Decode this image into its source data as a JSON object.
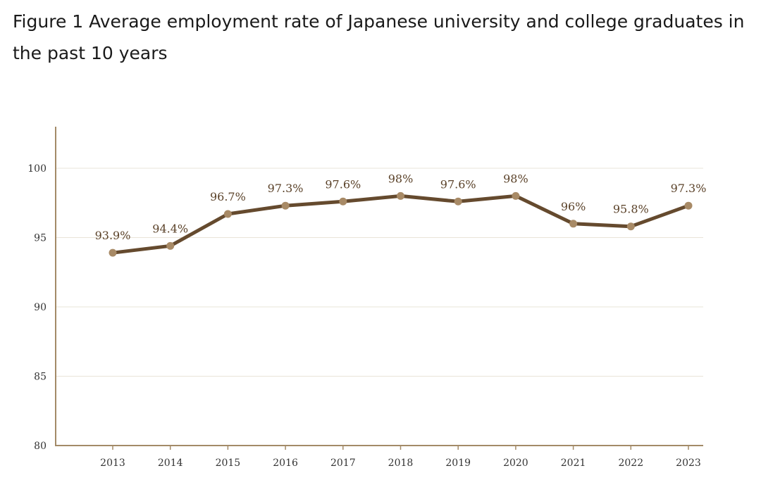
{
  "figure": {
    "title": "Figure 1 Average employment rate of Japanese university and college graduates in the past 10 years"
  },
  "colors": {
    "line": "#654a2e",
    "marker": "#a88a66",
    "axis": "#a38a68",
    "grid": "#e9e4d8",
    "label": "#5a4128"
  },
  "chart_data": {
    "type": "line",
    "title": "Figure 1 Average employment rate of Japanese university and college graduates in the past 10 years",
    "categories": [
      "2013",
      "2014",
      "2015",
      "2016",
      "2017",
      "2018",
      "2019",
      "2020",
      "2021",
      "2022",
      "2023"
    ],
    "series": [
      {
        "values": [
          93.9,
          94.4,
          96.7,
          97.3,
          97.6,
          98,
          97.6,
          98,
          96,
          95.8,
          97.3
        ],
        "labels": [
          "93.9%",
          "94.4%",
          "96.7%",
          "97.3%",
          "97.6%",
          "98%",
          "97.6%",
          "98%",
          "96%",
          "95.8%",
          "97.3%"
        ]
      }
    ],
    "yticks": [
      80,
      85,
      90,
      95,
      100
    ],
    "ylim": [
      80,
      100
    ],
    "xlabel": "",
    "ylabel": "",
    "grid": true,
    "legend": "none"
  }
}
